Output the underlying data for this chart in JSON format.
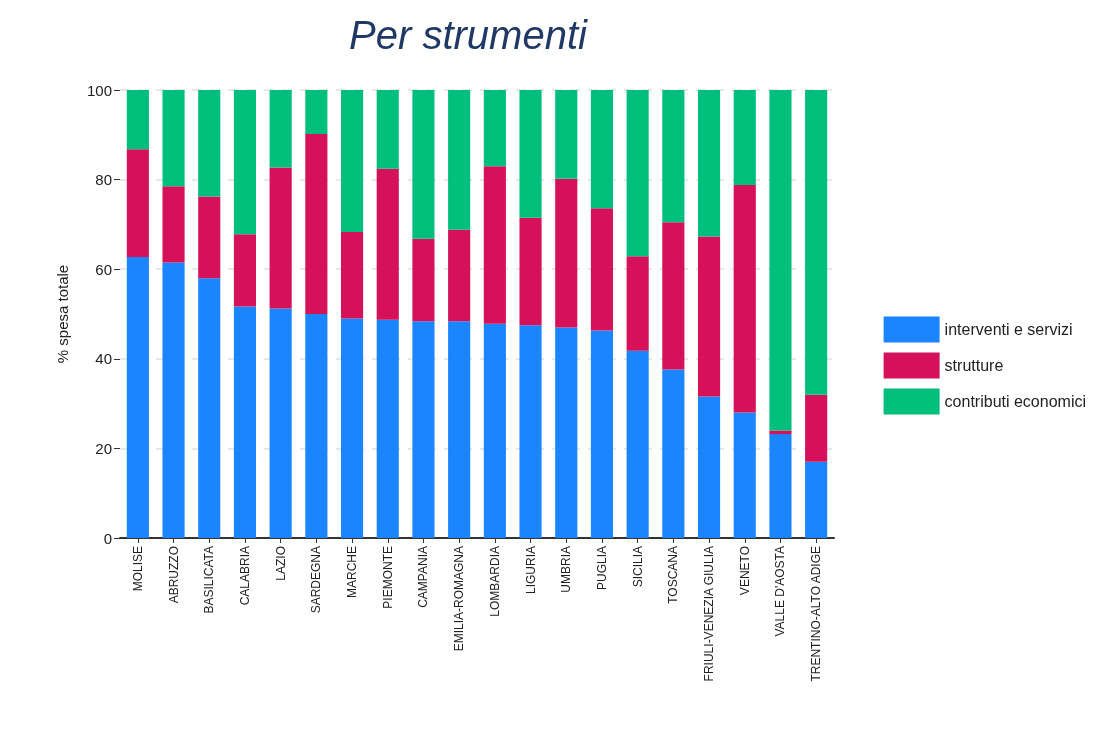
{
  "chart_data": {
    "type": "bar",
    "title": "Per strumenti",
    "ylabel": "% spesa totale",
    "stacked": true,
    "categories": [
      "MOLISE",
      "ABRUZZO",
      "BASILICATA",
      "CALABRIA",
      "LAZIO",
      "SARDEGNA",
      "MARCHE",
      "PIEMONTE",
      "CAMPANIA",
      "EMILIA-ROMAGNA",
      "LOMBARDIA",
      "LIGURIA",
      "UMBRIA",
      "PUGLIA",
      "SICILIA",
      "TOSCANA",
      "FRIULI-VENEZIA GIULIA",
      "VENETO",
      "VALLE D'AOSTA",
      "TRENTINO-ALTO ADIGE"
    ],
    "series": [
      {
        "name": "interventi e servizi",
        "color": "#1a85ff",
        "values": [
          62.7,
          61.5,
          58,
          51.7,
          51.2,
          50,
          49,
          48.7,
          48.4,
          48.4,
          47.8,
          47.5,
          47,
          46.3,
          41.8,
          37.6,
          31.6,
          28,
          23.2,
          17
        ]
      },
      {
        "name": "strutture",
        "color": "#d41159",
        "values": [
          24.1,
          17,
          18.2,
          16.1,
          31.5,
          40.2,
          19.3,
          33.7,
          18.4,
          20.4,
          35.2,
          24,
          33.2,
          27.3,
          21.1,
          32.9,
          35.7,
          50.8,
          0.8,
          15
        ]
      },
      {
        "name": "contributi economici",
        "color": "#00bf7d",
        "values": [
          13.2,
          21.5,
          23.8,
          32.2,
          17.3,
          9.8,
          31.7,
          17.6,
          33.2,
          31.2,
          17,
          28.5,
          19.8,
          26.4,
          37.1,
          29.5,
          32.7,
          21.2,
          76,
          68
        ]
      }
    ],
    "ylim": [
      0,
      100
    ],
    "yticks": [
      0,
      20,
      40,
      60,
      80,
      100
    ],
    "grid": "y",
    "legend": "right"
  }
}
